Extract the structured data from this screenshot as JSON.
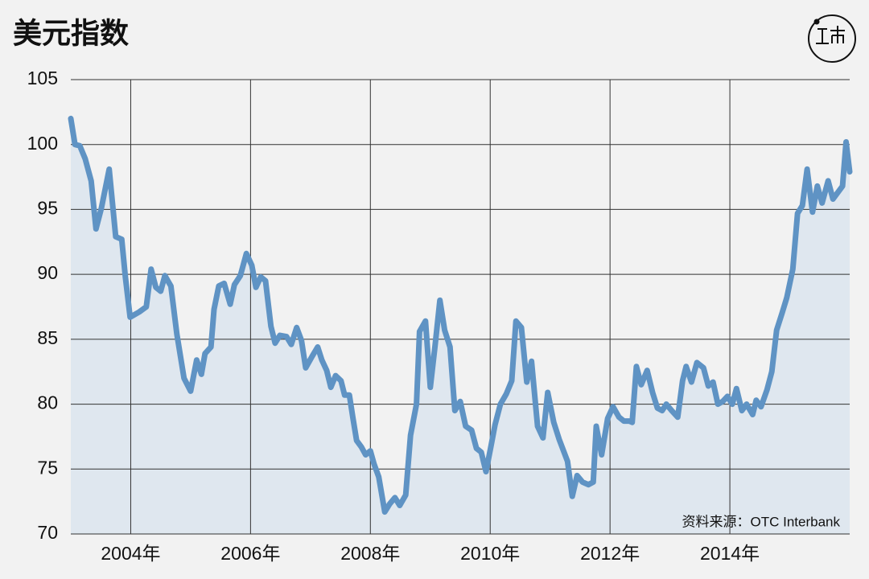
{
  "chart_data": {
    "type": "line",
    "title": "美元指数",
    "source": "资料来源：OTC Interbank",
    "x": [
      2003.0,
      2003.07,
      2003.15,
      2003.24,
      2003.34,
      2003.42,
      2003.51,
      2003.64,
      2003.75,
      2003.85,
      2003.91,
      2003.99,
      2004.14,
      2004.26,
      2004.34,
      2004.42,
      2004.5,
      2004.57,
      2004.67,
      2004.77,
      2004.89,
      2005.0,
      2005.1,
      2005.18,
      2005.24,
      2005.34,
      2005.39,
      2005.47,
      2005.56,
      2005.66,
      2005.73,
      2005.83,
      2005.93,
      2006.02,
      2006.09,
      2006.17,
      2006.25,
      2006.34,
      2006.41,
      2006.49,
      2006.6,
      2006.68,
      2006.77,
      2006.85,
      2006.92,
      2007.03,
      2007.12,
      2007.19,
      2007.27,
      2007.34,
      2007.42,
      2007.51,
      2007.57,
      2007.65,
      2007.71,
      2007.77,
      2007.85,
      2007.92,
      2008.0,
      2008.06,
      2008.14,
      2008.24,
      2008.32,
      2008.41,
      2008.49,
      2008.59,
      2008.67,
      2008.77,
      2008.82,
      2008.92,
      2009.0,
      2009.08,
      2009.16,
      2009.24,
      2009.33,
      2009.41,
      2009.5,
      2009.59,
      2009.69,
      2009.77,
      2009.85,
      2009.93,
      2010.01,
      2010.08,
      2010.17,
      2010.27,
      2010.36,
      2010.43,
      2010.52,
      2010.61,
      2010.69,
      2010.79,
      2010.88,
      2010.96,
      2011.06,
      2011.15,
      2011.29,
      2011.37,
      2011.45,
      2011.54,
      2011.64,
      2011.72,
      2011.77,
      2011.86,
      2011.96,
      2012.05,
      2012.15,
      2012.23,
      2012.32,
      2012.37,
      2012.44,
      2012.52,
      2012.62,
      2012.71,
      2012.79,
      2012.87,
      2012.94,
      2013.03,
      2013.13,
      2013.21,
      2013.27,
      2013.36,
      2013.45,
      2013.56,
      2013.64,
      2013.72,
      2013.8,
      2013.88,
      2013.96,
      2014.04,
      2014.11,
      2014.2,
      2014.28,
      2014.38,
      2014.44,
      2014.52,
      2014.62,
      2014.7,
      2014.78,
      2014.87,
      2014.95,
      2015.05,
      2015.13,
      2015.21,
      2015.29,
      2015.38,
      2015.46,
      2015.54,
      2015.64,
      2015.72,
      2015.88,
      2015.94,
      2016.0
    ],
    "series": [
      {
        "color": "#5f93c4",
        "values": [
          102.0,
          100.0,
          99.9,
          98.9,
          97.2,
          93.5,
          95.1,
          98.1,
          92.9,
          92.7,
          89.8,
          86.7,
          87.1,
          87.5,
          90.4,
          89.0,
          88.7,
          89.9,
          89.1,
          85.4,
          82.0,
          81.0,
          83.4,
          82.3,
          83.9,
          84.4,
          87.3,
          89.1,
          89.3,
          87.7,
          89.2,
          89.9,
          91.6,
          90.7,
          89.0,
          89.8,
          89.5,
          86.0,
          84.7,
          85.3,
          85.2,
          84.6,
          85.9,
          84.9,
          82.8,
          83.7,
          84.4,
          83.4,
          82.6,
          81.3,
          82.2,
          81.8,
          80.7,
          80.7,
          78.9,
          77.2,
          76.7,
          76.1,
          76.4,
          75.4,
          74.4,
          71.7,
          72.3,
          72.8,
          72.2,
          73.0,
          77.6,
          80.0,
          85.6,
          86.4,
          81.3,
          84.5,
          88.0,
          85.7,
          84.4,
          79.5,
          80.2,
          78.3,
          78.0,
          76.6,
          76.3,
          74.8,
          76.7,
          78.4,
          80.0,
          80.8,
          81.8,
          86.4,
          85.9,
          81.7,
          83.3,
          78.3,
          77.4,
          80.9,
          78.6,
          77.3,
          75.6,
          72.9,
          74.5,
          74.0,
          73.8,
          74.0,
          78.3,
          76.1,
          78.9,
          79.8,
          79.0,
          78.7,
          78.7,
          78.6,
          82.9,
          81.5,
          82.6,
          80.9,
          79.7,
          79.5,
          80.0,
          79.5,
          79.0,
          81.8,
          82.9,
          81.7,
          83.2,
          82.8,
          81.4,
          81.7,
          80.0,
          80.2,
          80.6,
          80.0,
          81.2,
          79.5,
          80.0,
          79.2,
          80.3,
          79.8,
          81.1,
          82.5,
          85.7,
          87.0,
          88.2,
          90.4,
          94.7,
          95.3,
          98.1,
          94.8,
          96.8,
          95.5,
          97.2,
          95.8,
          96.8,
          100.2,
          97.9
        ]
      }
    ],
    "xlim": [
      2003,
      2016
    ],
    "xticks": [
      {
        "value": 2004,
        "label": "2004年"
      },
      {
        "value": 2006,
        "label": "2006年"
      },
      {
        "value": 2008,
        "label": "2008年"
      },
      {
        "value": 2010,
        "label": "2010年"
      },
      {
        "value": 2012,
        "label": "2012年"
      },
      {
        "value": 2014,
        "label": "2014年"
      }
    ],
    "ylim": [
      70,
      105
    ],
    "yticks": [
      70,
      75,
      80,
      85,
      90,
      95,
      100,
      105
    ],
    "grid": true,
    "area_color": "#dde5ee"
  }
}
